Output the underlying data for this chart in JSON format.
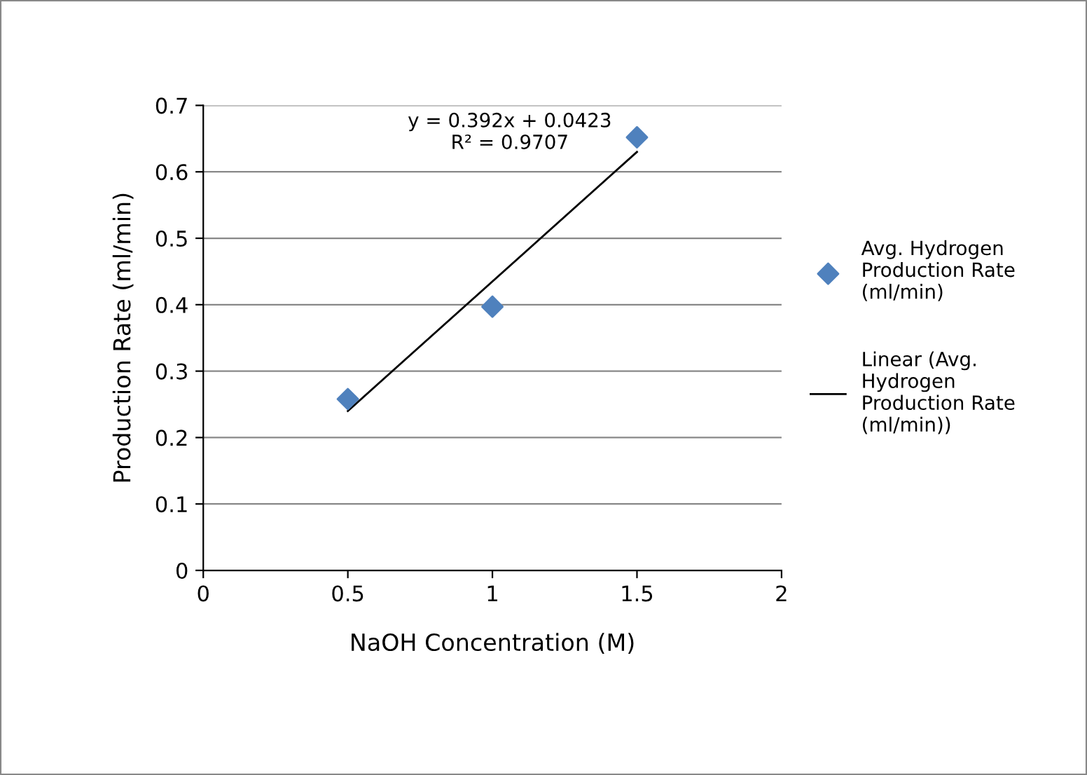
{
  "chart_data": {
    "type": "scatter",
    "xlabel": "NaOH Concentration (M)",
    "ylabel": "Production Rate (ml/min)",
    "x": [
      0.5,
      1,
      1.5
    ],
    "series": [
      {
        "name": "Avg. Hydrogen Production Rate (ml/min)",
        "color": "#4f81bd",
        "values": [
          0.258,
          0.397,
          0.652
        ],
        "marker": "diamond"
      },
      {
        "type": "line",
        "name": "Linear (Avg. Hydrogen Production Rate (ml/min))",
        "color": "#000000",
        "x": [
          0.5,
          1.5
        ],
        "values": [
          0.24,
          0.63
        ]
      }
    ],
    "annotations": [
      "y = 0.392x + 0.0423\nR² = 0.9707"
    ],
    "xlim": [
      0,
      2
    ],
    "xticks": [
      0,
      0.5,
      1,
      1.5,
      2
    ],
    "ylim": [
      0,
      0.7
    ],
    "yticks": [
      0,
      0.1,
      0.2,
      0.3,
      0.4,
      0.5,
      0.6,
      0.7
    ],
    "grid": "y",
    "legend": "right"
  }
}
